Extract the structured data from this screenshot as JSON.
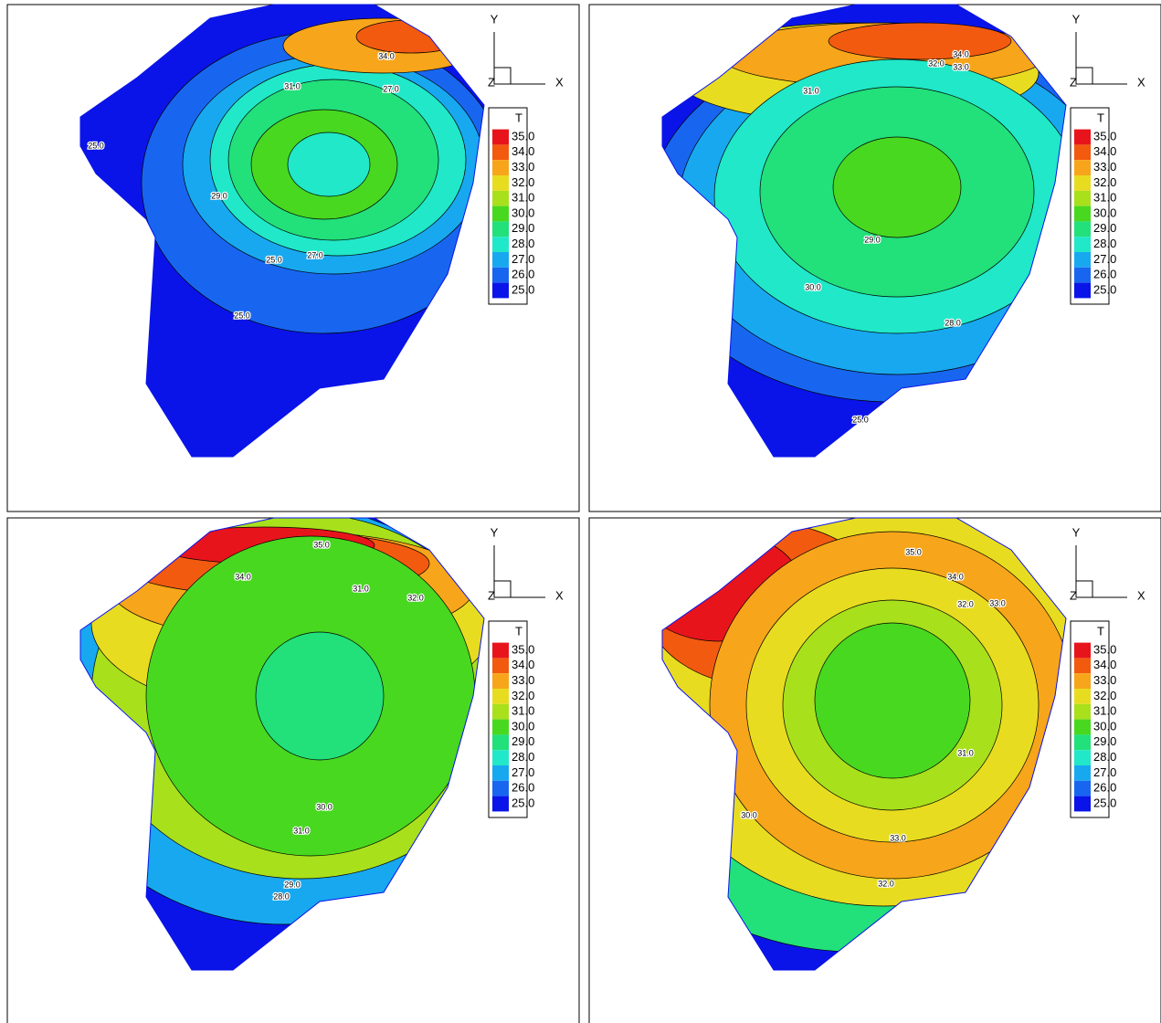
{
  "axes": {
    "x": "X",
    "y": "Y",
    "z": "Z"
  },
  "legend": {
    "title": "T",
    "levels": [
      "35.0",
      "34.0",
      "33.0",
      "32.0",
      "31.0",
      "30.0",
      "29.0",
      "28.0",
      "27.0",
      "26.0",
      "25.0"
    ],
    "colors": [
      "#e8141c",
      "#f25a10",
      "#f7a51a",
      "#e8dc20",
      "#a8e01c",
      "#48d820",
      "#22e07a",
      "#20e8c8",
      "#18a8f0",
      "#1866f0",
      "#0a14e8"
    ]
  },
  "panels": [
    {
      "contour_labels": [
        "25.0",
        "25.0",
        "27.0",
        "25.0",
        "29.0",
        "31.0",
        "34.0",
        "27.0"
      ]
    },
    {
      "contour_labels": [
        "25.0",
        "29.0",
        "28.0",
        "31.0",
        "32.0",
        "33.0",
        "34.0",
        "30.0"
      ]
    },
    {
      "contour_labels": [
        "35.0",
        "34.0",
        "32.0",
        "31.0",
        "30.0",
        "28.0",
        "29.0",
        "31.0"
      ]
    },
    {
      "contour_labels": [
        "35.0",
        "34.0",
        "33.0",
        "32.0",
        "31.0",
        "33.0",
        "32.0",
        "30.0"
      ]
    }
  ]
}
